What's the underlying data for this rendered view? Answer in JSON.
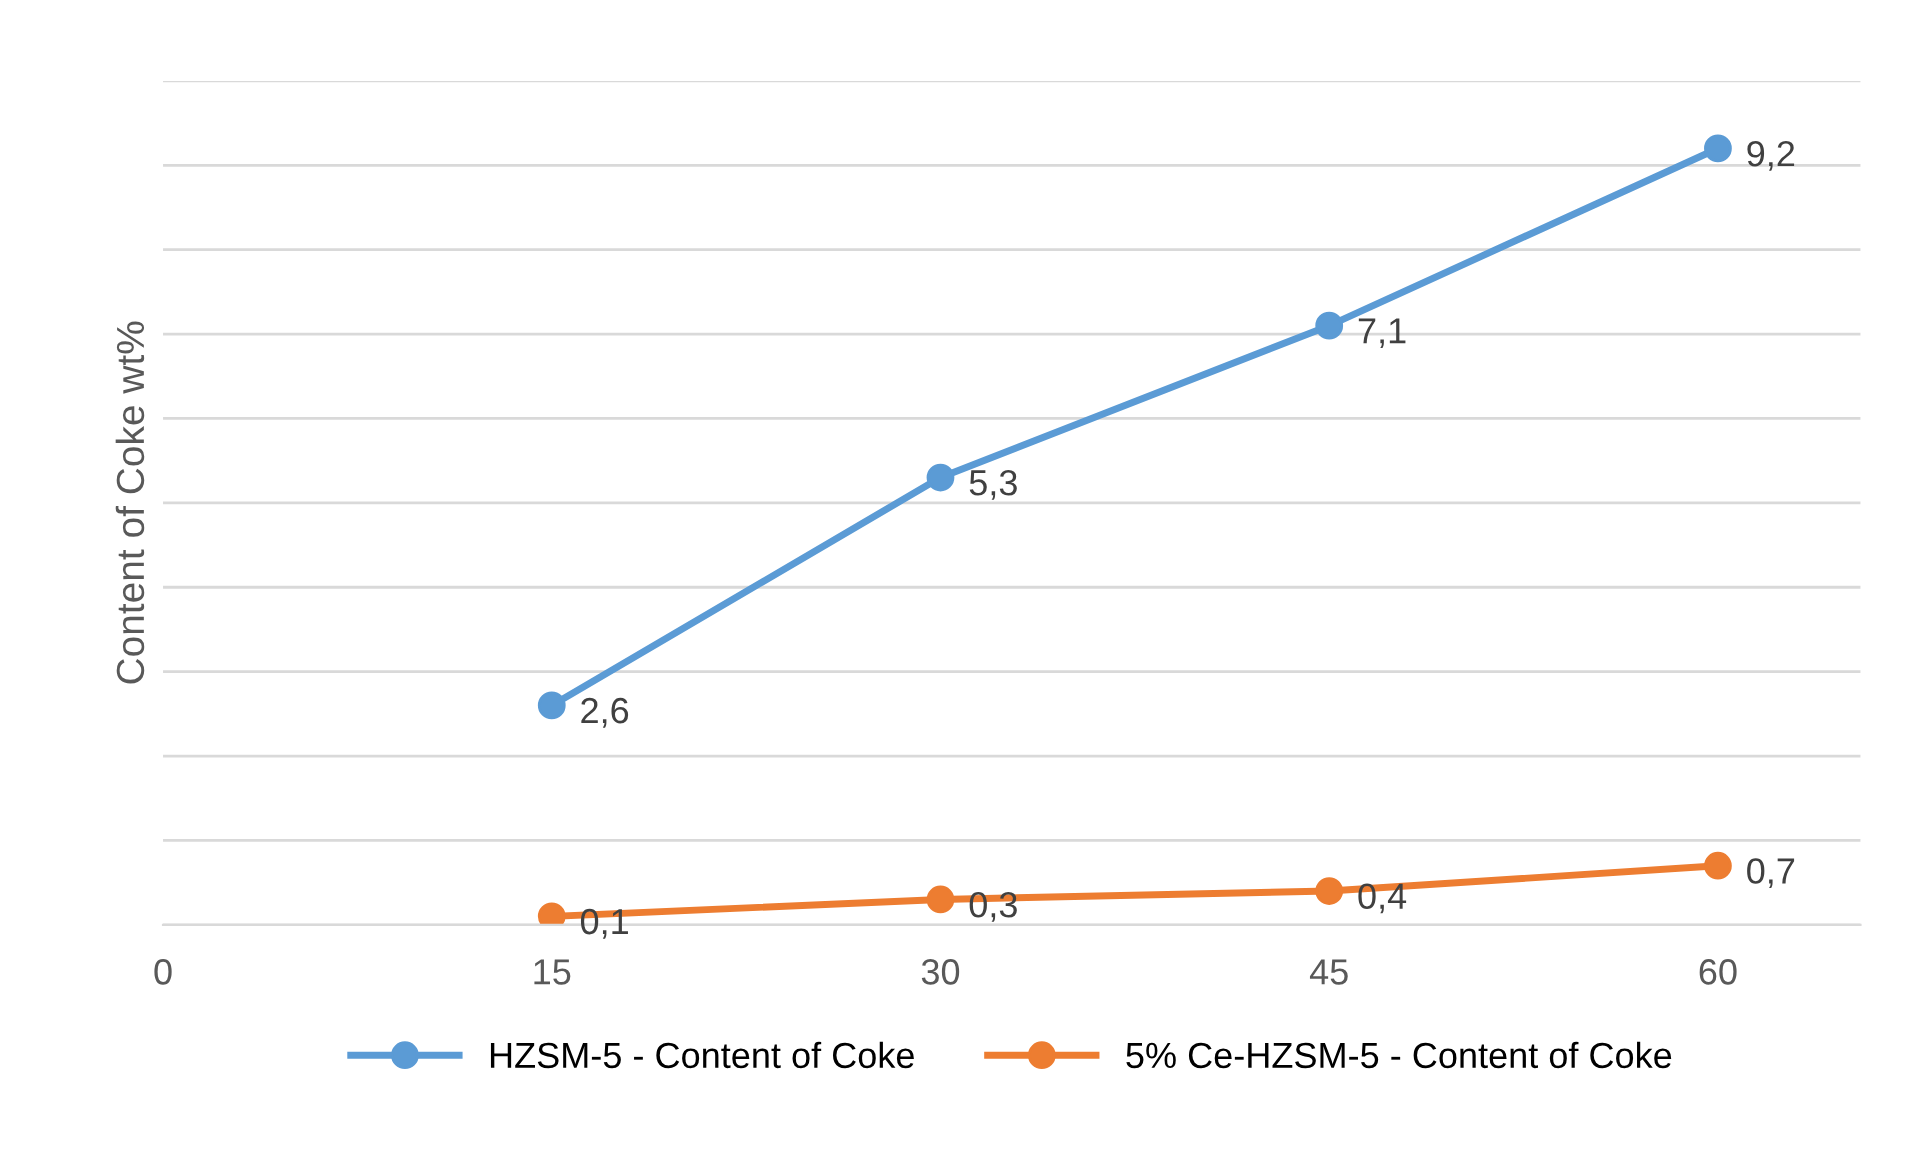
{
  "chart_data": {
    "type": "line",
    "ylabel": "Content of Coke wt%",
    "x": [
      15,
      30,
      45,
      60
    ],
    "series": [
      {
        "name": "HZSM-5 - Content of Coke",
        "color": "#5b9bd5",
        "values": [
          2.6,
          5.3,
          7.1,
          9.2
        ],
        "value_labels": [
          "2,6",
          "5,3",
          "7,1",
          "9,2"
        ]
      },
      {
        "name": "5% Ce-HZSM-5 - Content of Coke",
        "color": "#ed7d31",
        "values": [
          0.1,
          0.3,
          0.4,
          0.7
        ],
        "value_labels": [
          "0,1",
          "0,3",
          "0,4",
          "0,7"
        ]
      }
    ],
    "xlim": [
      0,
      65.5
    ],
    "xticks": [
      0,
      15,
      30,
      45,
      60
    ],
    "ylim": [
      0,
      10
    ],
    "yticks": [
      {
        "value": 0,
        "label": null
      },
      {
        "value": 1,
        "label": null
      },
      {
        "value": 2,
        "label": null
      },
      {
        "value": 3,
        "label": null
      },
      {
        "value": 4,
        "label": null
      },
      {
        "value": 5,
        "label": null
      },
      {
        "value": 6,
        "label": null
      },
      {
        "value": 7,
        "label": null
      },
      {
        "value": 8,
        "label": null
      },
      {
        "value": 9,
        "label": null
      },
      {
        "value": 10,
        "label": null
      }
    ],
    "tick_labels": "x",
    "grid": "y",
    "legend": "bottom",
    "marker": "circle",
    "line_style": "solid"
  }
}
